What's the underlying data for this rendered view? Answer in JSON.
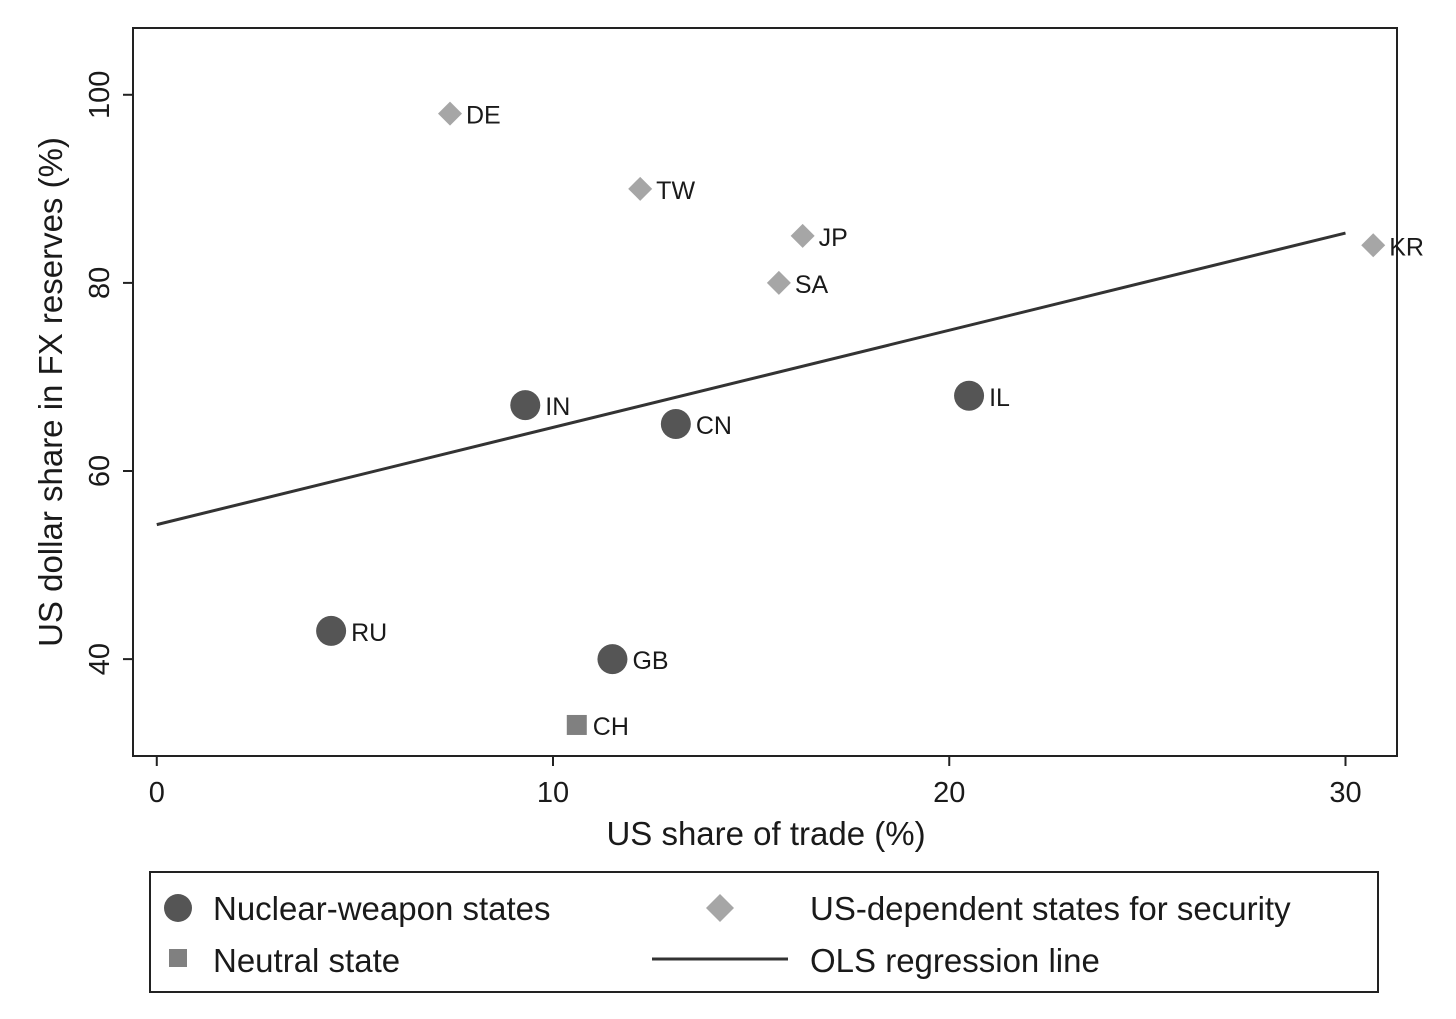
{
  "chart_data": {
    "type": "scatter",
    "xlabel": "US share of trade (%)",
    "ylabel": "US dollar share in FX reserves (%)",
    "xlim": [
      -0.6,
      31.3
    ],
    "ylim": [
      29.7,
      107.1
    ],
    "xticks": [
      0,
      10,
      20,
      30
    ],
    "yticks": [
      40,
      60,
      80,
      100
    ],
    "grid": false,
    "legend_position": "bottom",
    "series": [
      {
        "name": "Nuclear-weapon states",
        "marker": "circle",
        "color": "#555555",
        "points": [
          {
            "label": "IN",
            "x": 9.3,
            "y": 67
          },
          {
            "label": "CN",
            "x": 13.1,
            "y": 65
          },
          {
            "label": "IL",
            "x": 20.5,
            "y": 68
          },
          {
            "label": "RU",
            "x": 4.4,
            "y": 43
          },
          {
            "label": "GB",
            "x": 11.5,
            "y": 40
          }
        ]
      },
      {
        "name": "US-dependent states for security",
        "marker": "diamond",
        "color": "#a6a6a6",
        "points": [
          {
            "label": "DE",
            "x": 7.4,
            "y": 98
          },
          {
            "label": "TW",
            "x": 12.2,
            "y": 90
          },
          {
            "label": "JP",
            "x": 16.3,
            "y": 85
          },
          {
            "label": "SA",
            "x": 15.7,
            "y": 80
          },
          {
            "label": "KR",
            "x": 30.7,
            "y": 84
          }
        ]
      },
      {
        "name": "Neutral state",
        "marker": "square",
        "color": "#808080",
        "points": [
          {
            "label": "CH",
            "x": 10.6,
            "y": 33
          }
        ]
      }
    ],
    "regression": {
      "name": "OLS regression line",
      "color": "#333333",
      "x": [
        0,
        30
      ],
      "y": [
        54.3,
        85.3
      ]
    }
  }
}
